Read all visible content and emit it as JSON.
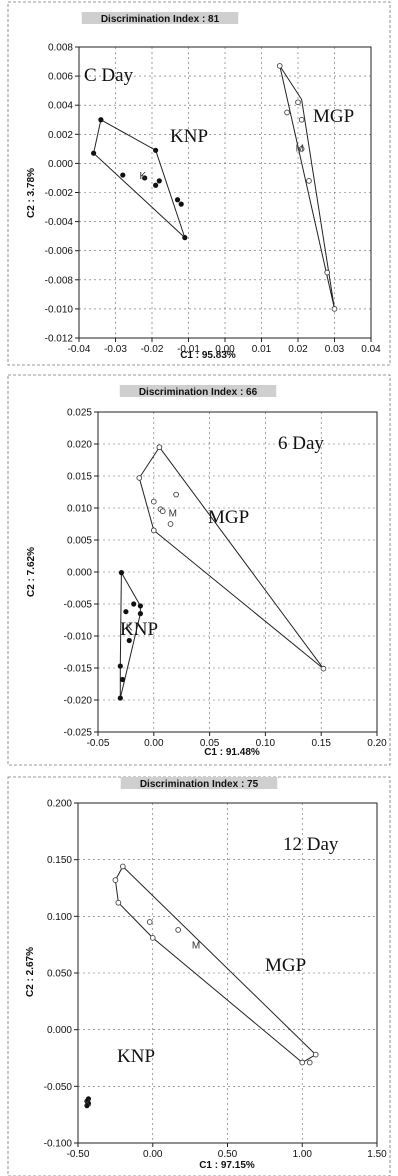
{
  "chart_data": [
    {
      "type": "scatter",
      "title": "Discrimination Index : 81",
      "xlabel": "C1 : 95.83%",
      "ylabel": "C2 : 3.78%",
      "xlim": [
        -0.04,
        0.04
      ],
      "ylim": [
        -0.012,
        0.008
      ],
      "xticks": [
        "-0.04",
        "-0.03",
        "-0.02",
        "-0.01",
        "0.00",
        "0.01",
        "0.02",
        "0.03",
        "0.04"
      ],
      "yticks": [
        "0.008",
        "0.006",
        "0.004",
        "0.002",
        "0.000",
        "-0.002",
        "-0.004",
        "-0.006",
        "-0.008",
        "-0.010",
        "-0.012"
      ],
      "xtick_values": [
        -0.04,
        -0.03,
        -0.02,
        -0.01,
        0,
        0.01,
        0.02,
        0.03,
        0.04
      ],
      "ytick_values": [
        0.008,
        0.006,
        0.004,
        0.002,
        0,
        -0.002,
        -0.004,
        -0.006,
        -0.008,
        -0.01,
        -0.012
      ],
      "annotation": "C Day",
      "grid": true,
      "series": [
        {
          "name": "KNP",
          "marker": "filled",
          "points": [
            [
              -0.034,
              0.003
            ],
            [
              -0.036,
              0.0007
            ],
            [
              -0.028,
              -0.0008
            ],
            [
              -0.022,
              -0.001
            ],
            [
              -0.019,
              -0.0015
            ],
            [
              -0.018,
              -0.0012
            ],
            [
              -0.013,
              -0.0025
            ],
            [
              -0.012,
              -0.0028
            ],
            [
              -0.011,
              -0.0051
            ],
            [
              -0.019,
              0.0009
            ]
          ],
          "hull": [
            [
              -0.034,
              0.003
            ],
            [
              -0.019,
              0.0009
            ],
            [
              -0.011,
              -0.0051
            ],
            [
              -0.036,
              0.0007
            ]
          ],
          "centroid": [
            -0.0225,
            -0.0008
          ]
        },
        {
          "name": "MGP",
          "marker": "open",
          "points": [
            [
              0.015,
              0.0067
            ],
            [
              0.017,
              0.0035
            ],
            [
              0.02,
              0.0042
            ],
            [
              0.021,
              0.003
            ],
            [
              0.021,
              0.001
            ],
            [
              0.023,
              -0.0012
            ],
            [
              0.028,
              -0.0075
            ],
            [
              0.03,
              -0.01
            ]
          ],
          "hull": [
            [
              0.015,
              0.0067
            ],
            [
              0.021,
              0.0044
            ],
            [
              0.03,
              -0.01
            ]
          ],
          "centroid": [
            0.0205,
            0.0011
          ]
        }
      ]
    },
    {
      "type": "scatter",
      "title": "Discrimination Index : 66",
      "xlabel": "C1 : 91.48%",
      "ylabel": "C2 : 7.62%",
      "xlim": [
        -0.05,
        0.2
      ],
      "ylim": [
        -0.025,
        0.025
      ],
      "xticks": [
        "-0.05",
        "0.00",
        "0.05",
        "0.10",
        "0.15",
        "0.20"
      ],
      "yticks": [
        "0.025",
        "0.020",
        "0.015",
        "0.010",
        "0.005",
        "0.000",
        "-0.005",
        "-0.010",
        "-0.015",
        "-0.020",
        "-0.025"
      ],
      "xtick_values": [
        -0.05,
        0,
        0.05,
        0.1,
        0.15,
        0.2
      ],
      "ytick_values": [
        0.025,
        0.02,
        0.015,
        0.01,
        0.005,
        0,
        -0.005,
        -0.01,
        -0.015,
        -0.02,
        -0.025
      ],
      "annotation": "6 Day",
      "grid": true,
      "series": [
        {
          "name": "MGP",
          "marker": "open",
          "points": [
            [
              0.005,
              0.0195
            ],
            [
              -0.013,
              0.0147
            ],
            [
              0.0,
              0.011
            ],
            [
              0.006,
              0.0098
            ],
            [
              0.008,
              0.0095
            ],
            [
              0.015,
              0.0075
            ],
            [
              0.02,
              0.0121
            ],
            [
              0.0,
              0.0065
            ],
            [
              0.152,
              -0.0151
            ]
          ],
          "hull": [
            [
              0.005,
              0.0195
            ],
            [
              0.152,
              -0.0151
            ],
            [
              0.0,
              0.0065
            ],
            [
              -0.013,
              0.0147
            ]
          ],
          "centroid": [
            0.017,
            0.0093
          ]
        },
        {
          "name": "KNP",
          "marker": "filled",
          "points": [
            [
              -0.029,
              -0.0001
            ],
            [
              -0.025,
              -0.0062
            ],
            [
              -0.018,
              -0.005
            ],
            [
              -0.012,
              -0.0053
            ],
            [
              -0.012,
              -0.0065
            ],
            [
              -0.022,
              -0.0107
            ],
            [
              -0.03,
              -0.0147
            ],
            [
              -0.028,
              -0.0168
            ],
            [
              -0.03,
              -0.0197
            ]
          ],
          "hull": [
            [
              -0.029,
              -0.0001
            ],
            [
              -0.012,
              -0.0053
            ],
            [
              -0.012,
              -0.0065
            ],
            [
              -0.03,
              -0.0197
            ],
            [
              -0.03,
              -0.0147
            ]
          ],
          "centroid": [
            -0.022,
            -0.0085
          ]
        }
      ]
    },
    {
      "type": "scatter",
      "title": "Discrimination Index : 75",
      "xlabel": "C1 : 97.15%",
      "ylabel": "C2 : 2.67%",
      "xlim": [
        -0.5,
        1.5
      ],
      "ylim": [
        -0.1,
        0.2
      ],
      "xticks": [
        "-0.50",
        "0.00",
        "0.50",
        "1.00",
        "1.50"
      ],
      "yticks": [
        "0.200",
        "0.150",
        "0.100",
        "0.050",
        "0.000",
        "-0.050",
        "-0.100"
      ],
      "xtick_values": [
        -0.5,
        0,
        0.5,
        1.0,
        1.5
      ],
      "ytick_values": [
        0.2,
        0.15,
        0.1,
        0.05,
        0,
        -0.05,
        -0.1
      ],
      "annotation": "12 Day",
      "grid": true,
      "series": [
        {
          "name": "MGP",
          "marker": "open",
          "points": [
            [
              -0.2,
              0.144
            ],
            [
              -0.25,
              0.132
            ],
            [
              -0.23,
              0.112
            ],
            [
              -0.02,
              0.095
            ],
            [
              0.0,
              0.081
            ],
            [
              0.17,
              0.088
            ],
            [
              1.0,
              -0.029
            ],
            [
              1.05,
              -0.029
            ],
            [
              1.09,
              -0.022
            ]
          ],
          "hull": [
            [
              -0.2,
              0.144
            ],
            [
              1.09,
              -0.022
            ],
            [
              1.0,
              -0.029
            ],
            [
              0.0,
              0.081
            ],
            [
              -0.23,
              0.112
            ],
            [
              -0.25,
              0.132
            ]
          ],
          "centroid": [
            0.29,
            0.075
          ]
        },
        {
          "name": "KNP",
          "marker": "filled",
          "points": [
            [
              -0.44,
              -0.063
            ],
            [
              -0.43,
              -0.065
            ],
            [
              -0.44,
              -0.067
            ],
            [
              -0.43,
              -0.061
            ]
          ],
          "hull": [],
          "centroid": [
            -0.435,
            -0.064
          ]
        }
      ]
    }
  ]
}
